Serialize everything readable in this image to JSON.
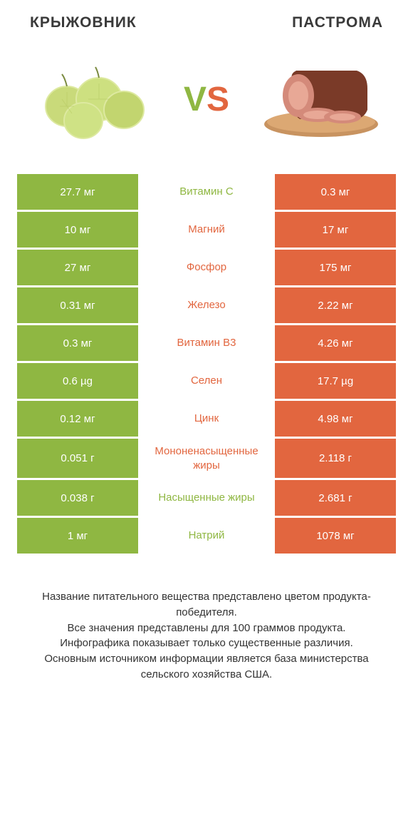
{
  "header": {
    "left_title": "КРЫЖОВНИК",
    "right_title": "ПАСТРОМА"
  },
  "vs": {
    "v": "V",
    "s": "S"
  },
  "colors": {
    "left": "#8fb742",
    "right": "#e2663f",
    "text": "#3a3a3a",
    "bg": "#ffffff"
  },
  "table": {
    "rows": [
      {
        "nutrient": "Витамин C",
        "left": "27.7 мг",
        "right": "0.3 мг",
        "winner": "left"
      },
      {
        "nutrient": "Магний",
        "left": "10 мг",
        "right": "17 мг",
        "winner": "right"
      },
      {
        "nutrient": "Фосфор",
        "left": "27 мг",
        "right": "175 мг",
        "winner": "right"
      },
      {
        "nutrient": "Железо",
        "left": "0.31 мг",
        "right": "2.22 мг",
        "winner": "right"
      },
      {
        "nutrient": "Витамин B3",
        "left": "0.3 мг",
        "right": "4.26 мг",
        "winner": "right"
      },
      {
        "nutrient": "Селен",
        "left": "0.6 µg",
        "right": "17.7 µg",
        "winner": "right"
      },
      {
        "nutrient": "Цинк",
        "left": "0.12 мг",
        "right": "4.98 мг",
        "winner": "right"
      },
      {
        "nutrient": "Мононенасыщенные жиры",
        "left": "0.051 г",
        "right": "2.118 г",
        "winner": "right"
      },
      {
        "nutrient": "Насыщенные жиры",
        "left": "0.038 г",
        "right": "2.681 г",
        "winner": "left"
      },
      {
        "nutrient": "Натрий",
        "left": "1 мг",
        "right": "1078 мг",
        "winner": "left"
      }
    ]
  },
  "footer": {
    "line1": "Название питательного вещества представлено цветом продукта-победителя.",
    "line2": "Все значения представлены для 100 граммов продукта.",
    "line3": "Инфографика показывает только существенные различия.",
    "line4": "Основным источником информации является база министерства сельского хозяйства США."
  }
}
